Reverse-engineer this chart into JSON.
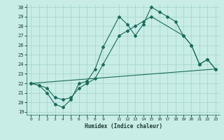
{
  "xlabel": "Humidex (Indice chaleur)",
  "background_color": "#c8ece6",
  "grid_color": "#a0d4cc",
  "line_color": "#1a6b5a",
  "line1_x": [
    0,
    1,
    2,
    3,
    4,
    5,
    6,
    7,
    8,
    9,
    11,
    12,
    13,
    14,
    15,
    16,
    17,
    18,
    19,
    20,
    21,
    22,
    23
  ],
  "line1_y": [
    22,
    21.8,
    21,
    19.8,
    19.5,
    20.3,
    22,
    22.2,
    23.5,
    25.8,
    29,
    28.2,
    27,
    28.2,
    30,
    29.5,
    29,
    28.5,
    27,
    26,
    24,
    24.5,
    23.5
  ],
  "line2_x": [
    0,
    1,
    2,
    3,
    4,
    5,
    6,
    7,
    8,
    9,
    11,
    12,
    13,
    14,
    15,
    19,
    20,
    21,
    22,
    23
  ],
  "line2_y": [
    22,
    21.8,
    21.5,
    20.5,
    20.3,
    20.5,
    21.5,
    22,
    22.5,
    24,
    27,
    27.5,
    28,
    28.5,
    29,
    27,
    26,
    24,
    24.5,
    23.5
  ],
  "line3_x": [
    0,
    23
  ],
  "line3_y": [
    22,
    23.5
  ],
  "ylim": [
    19,
    30
  ],
  "xlim": [
    -0.5,
    23.5
  ],
  "yticks": [
    19,
    20,
    21,
    22,
    23,
    24,
    25,
    26,
    27,
    28,
    29,
    30
  ],
  "xticks": [
    0,
    1,
    2,
    3,
    4,
    5,
    6,
    7,
    8,
    9,
    11,
    12,
    13,
    14,
    15,
    16,
    17,
    18,
    19,
    20,
    21,
    22,
    23
  ]
}
